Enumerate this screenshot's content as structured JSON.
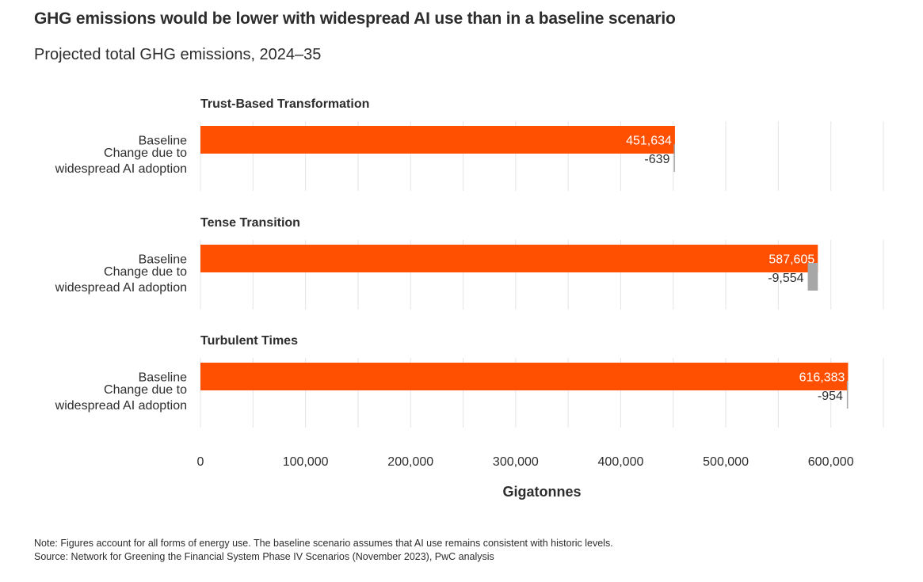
{
  "title": "GHG emissions would be lower with widespread AI use than in a baseline scenario",
  "subtitle": "Projected total GHG emissions, 2024–35",
  "note": "Note: Figures account for all forms of energy use. The baseline scenario assumes that AI use remains consistent with historic levels.",
  "source": "Source: Network for Greening the Financial System Phase IV Scenarios (November 2023), PwC analysis",
  "colors": {
    "baseline": "#fe5000",
    "change": "#a7a7a7",
    "gridline": "#e5e5e5",
    "text": "#2d2d2d"
  },
  "chart_data": {
    "type": "bar",
    "orientation": "horizontal",
    "xlabel": "Gigatonnes",
    "xlim": [
      0,
      650000
    ],
    "xticks": [
      0,
      100000,
      200000,
      300000,
      400000,
      500000,
      600000
    ],
    "xtick_labels": [
      "0",
      "100,000",
      "200,000",
      "300,000",
      "400,000",
      "500,000",
      "600,000"
    ],
    "grid": true,
    "row_labels": {
      "baseline": "Baseline",
      "change_line1": "Change due to",
      "change_line2": "widespread AI adoption"
    },
    "groups": [
      {
        "name": "Trust-Based Transformation",
        "baseline": 451634,
        "baseline_label": "451,634",
        "change": -639,
        "change_label": "-639"
      },
      {
        "name": "Tense Transition",
        "baseline": 587605,
        "baseline_label": "587,605",
        "change": -9554,
        "change_label": "-9,554"
      },
      {
        "name": "Turbulent Times",
        "baseline": 616383,
        "baseline_label": "616,383",
        "change": -954,
        "change_label": "-954"
      }
    ]
  }
}
